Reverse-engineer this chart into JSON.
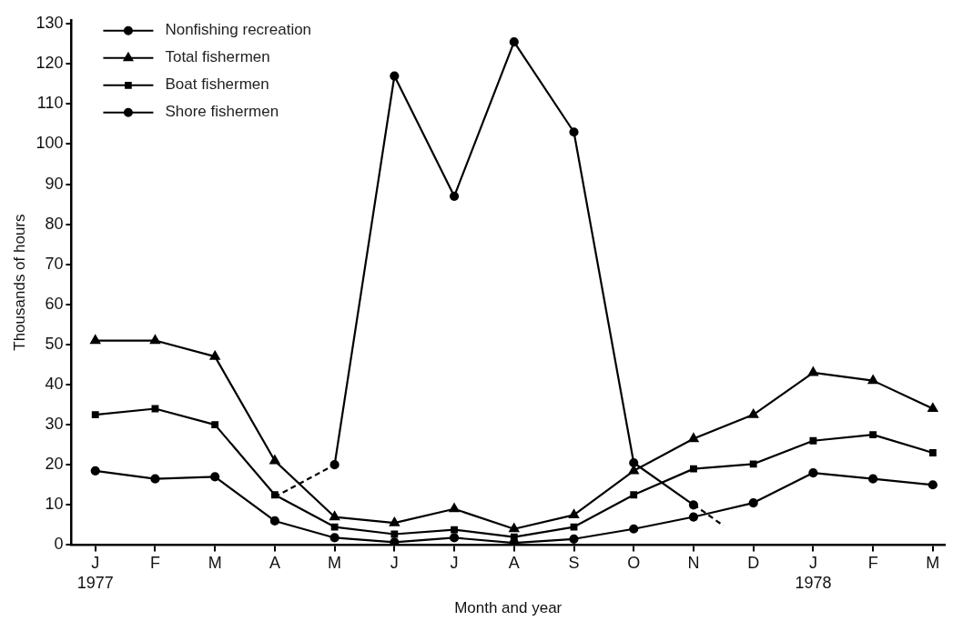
{
  "chart_data": {
    "type": "line",
    "xlabel": "Month and year",
    "ylabel": "Thousands of hours",
    "categories": [
      "J\n1977",
      "F",
      "M",
      "A",
      "M",
      "J",
      "J",
      "A",
      "S",
      "O",
      "N",
      "D",
      "J\n1978",
      "F",
      "M"
    ],
    "ylim": [
      0,
      131
    ],
    "yticks": [
      0,
      10,
      20,
      30,
      40,
      50,
      60,
      70,
      80,
      90,
      100,
      110,
      120,
      130
    ],
    "grid": false,
    "legend": "top left",
    "series": [
      {
        "name": "Nonfishing recreation",
        "color": "#000000",
        "marker": "circle",
        "values": [
          null,
          null,
          null,
          null,
          20,
          117,
          87,
          125.5,
          103,
          20.5,
          10,
          null,
          null,
          null,
          null
        ]
      },
      {
        "name": "Total fishermen",
        "color": "#000000",
        "marker": "triangle",
        "values": [
          51,
          51,
          47,
          21,
          7,
          5.5,
          9,
          4,
          7.5,
          18.5,
          26.5,
          32.5,
          43,
          41,
          34
        ]
      },
      {
        "name": "Boat fishermen",
        "color": "#000000",
        "marker": "square",
        "values": [
          32.5,
          34,
          30,
          12.5,
          4.5,
          2.7,
          3.8,
          2,
          4.5,
          12.5,
          19,
          20.2,
          26,
          27.5,
          23
        ]
      },
      {
        "name": "Shore fishermen",
        "color": "#000000",
        "marker": "circle",
        "values": [
          18.5,
          16.5,
          17,
          6,
          1.8,
          0.7,
          1.8,
          0.5,
          1.5,
          4,
          7,
          10.5,
          18,
          16.5,
          15
        ]
      },
      {
        "color": "#000000",
        "line_style": "dashed",
        "values": [
          null,
          null,
          null,
          12,
          20,
          null,
          null,
          null,
          null,
          null,
          null,
          null,
          null,
          null,
          null
        ]
      }
    ]
  }
}
